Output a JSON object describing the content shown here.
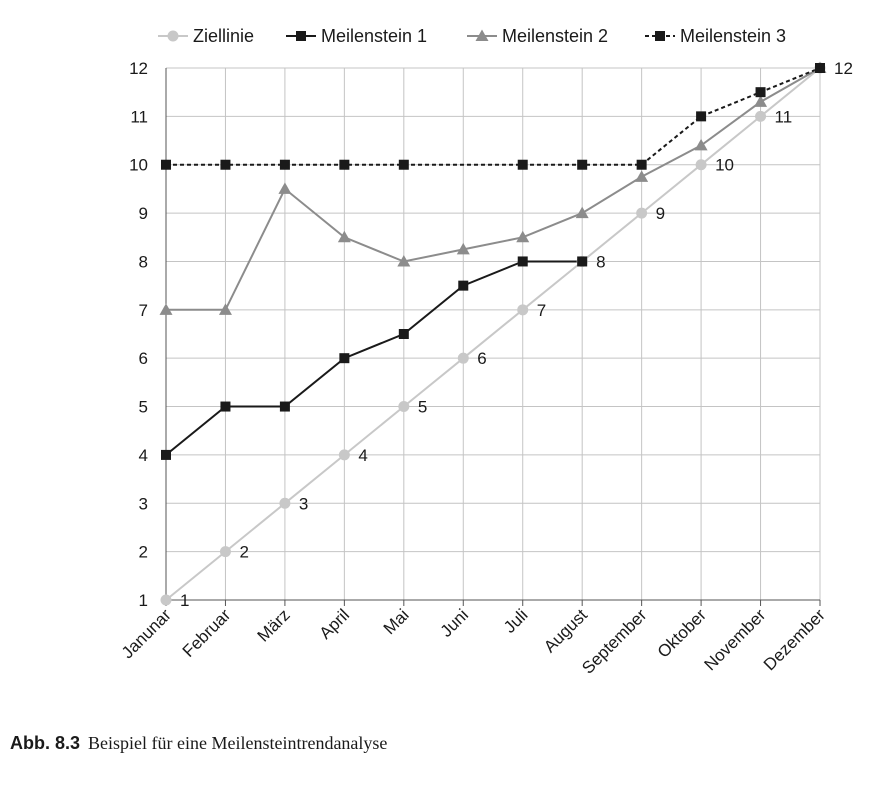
{
  "chart_data": {
    "type": "line",
    "categories": [
      "Janunar",
      "Februar",
      "März",
      "April",
      "Mai",
      "Juni",
      "Juli",
      "August",
      "September",
      "Oktober",
      "November",
      "Dezember"
    ],
    "ylim": [
      1,
      12
    ],
    "yticks": [
      1,
      2,
      3,
      4,
      5,
      6,
      7,
      8,
      9,
      10,
      11,
      12
    ],
    "grid": true,
    "legend_position": "top",
    "series": [
      {
        "name": "Ziellinie",
        "marker": "circle",
        "line": "solid",
        "color": "#c8c8c8",
        "values": [
          1,
          2,
          3,
          4,
          5,
          6,
          7,
          8,
          9,
          10,
          11,
          12
        ],
        "data_labels": [
          "1",
          "2",
          "3",
          "4",
          "5",
          "6",
          "7",
          "8",
          "9",
          "10",
          "11",
          "12"
        ]
      },
      {
        "name": "Meilenstein 1",
        "marker": "square",
        "line": "solid",
        "color": "#1a1a1a",
        "values": [
          4,
          5,
          5,
          6,
          6.5,
          7.5,
          8,
          8,
          null,
          null,
          null,
          null
        ]
      },
      {
        "name": "Meilenstein 2",
        "marker": "triangle",
        "line": "solid",
        "color": "#8c8c8c",
        "values": [
          7,
          7,
          9.5,
          8.5,
          8,
          8.25,
          8.5,
          9,
          9.75,
          10.4,
          11.3,
          12
        ]
      },
      {
        "name": "Meilenstein 3",
        "marker": "square",
        "line": "dashed",
        "color": "#1a1a1a",
        "values": [
          10,
          10,
          10,
          10,
          10,
          null,
          10,
          10,
          10,
          11,
          11.5,
          12
        ]
      }
    ]
  },
  "caption": {
    "label": "Abb. 8.3",
    "text": "Beispiel für eine Meilensteintrendanalyse"
  }
}
